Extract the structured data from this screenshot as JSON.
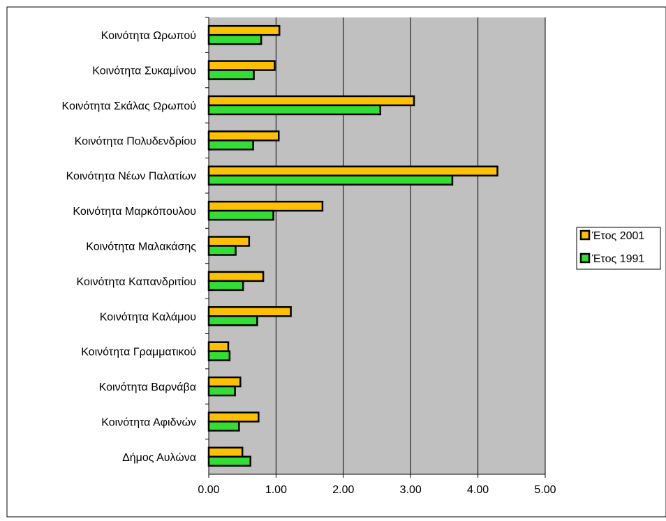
{
  "chart_data": {
    "type": "bar",
    "orientation": "horizontal",
    "categories": [
      "Κοινότητα Ωρωπού",
      "Κοινότητα Συκαμίνου",
      "Κοινότητα Σκάλας Ωρωπού",
      "Κοινότητα Πολυδενδρίου",
      "Κοινότητα Νέων Παλατίων",
      "Κοινότητα Μαρκόπουλου",
      "Κοινότητα Μαλακάσης",
      "Κοινότητα Καπανδριτίου",
      "Κοινότητα Καλάμου",
      "Κοινότητα Γραμματικού",
      "Κοινότητα Βαρνάβα",
      "Κοινότητα Αφιδνών",
      "Δήμος Αυλώνα"
    ],
    "series": [
      {
        "name": "Έτος 2001",
        "color": "#FFC000",
        "values": [
          1.05,
          0.98,
          3.05,
          1.04,
          4.29,
          1.69,
          0.6,
          0.81,
          1.22,
          0.29,
          0.47,
          0.74,
          0.5
        ]
      },
      {
        "name": "Έτος 1991",
        "color": "#33DD33",
        "values": [
          0.78,
          0.67,
          2.55,
          0.66,
          3.62,
          0.96,
          0.4,
          0.51,
          0.72,
          0.31,
          0.39,
          0.45,
          0.62
        ]
      }
    ],
    "xlim": [
      0,
      5
    ],
    "xticks": [
      "0.00",
      "1.00",
      "2.00",
      "3.00",
      "4.00",
      "5.00"
    ],
    "grid": true,
    "plot_background": "#C0C0C0",
    "legend_position": "right",
    "title": "",
    "xlabel": "",
    "ylabel": ""
  }
}
